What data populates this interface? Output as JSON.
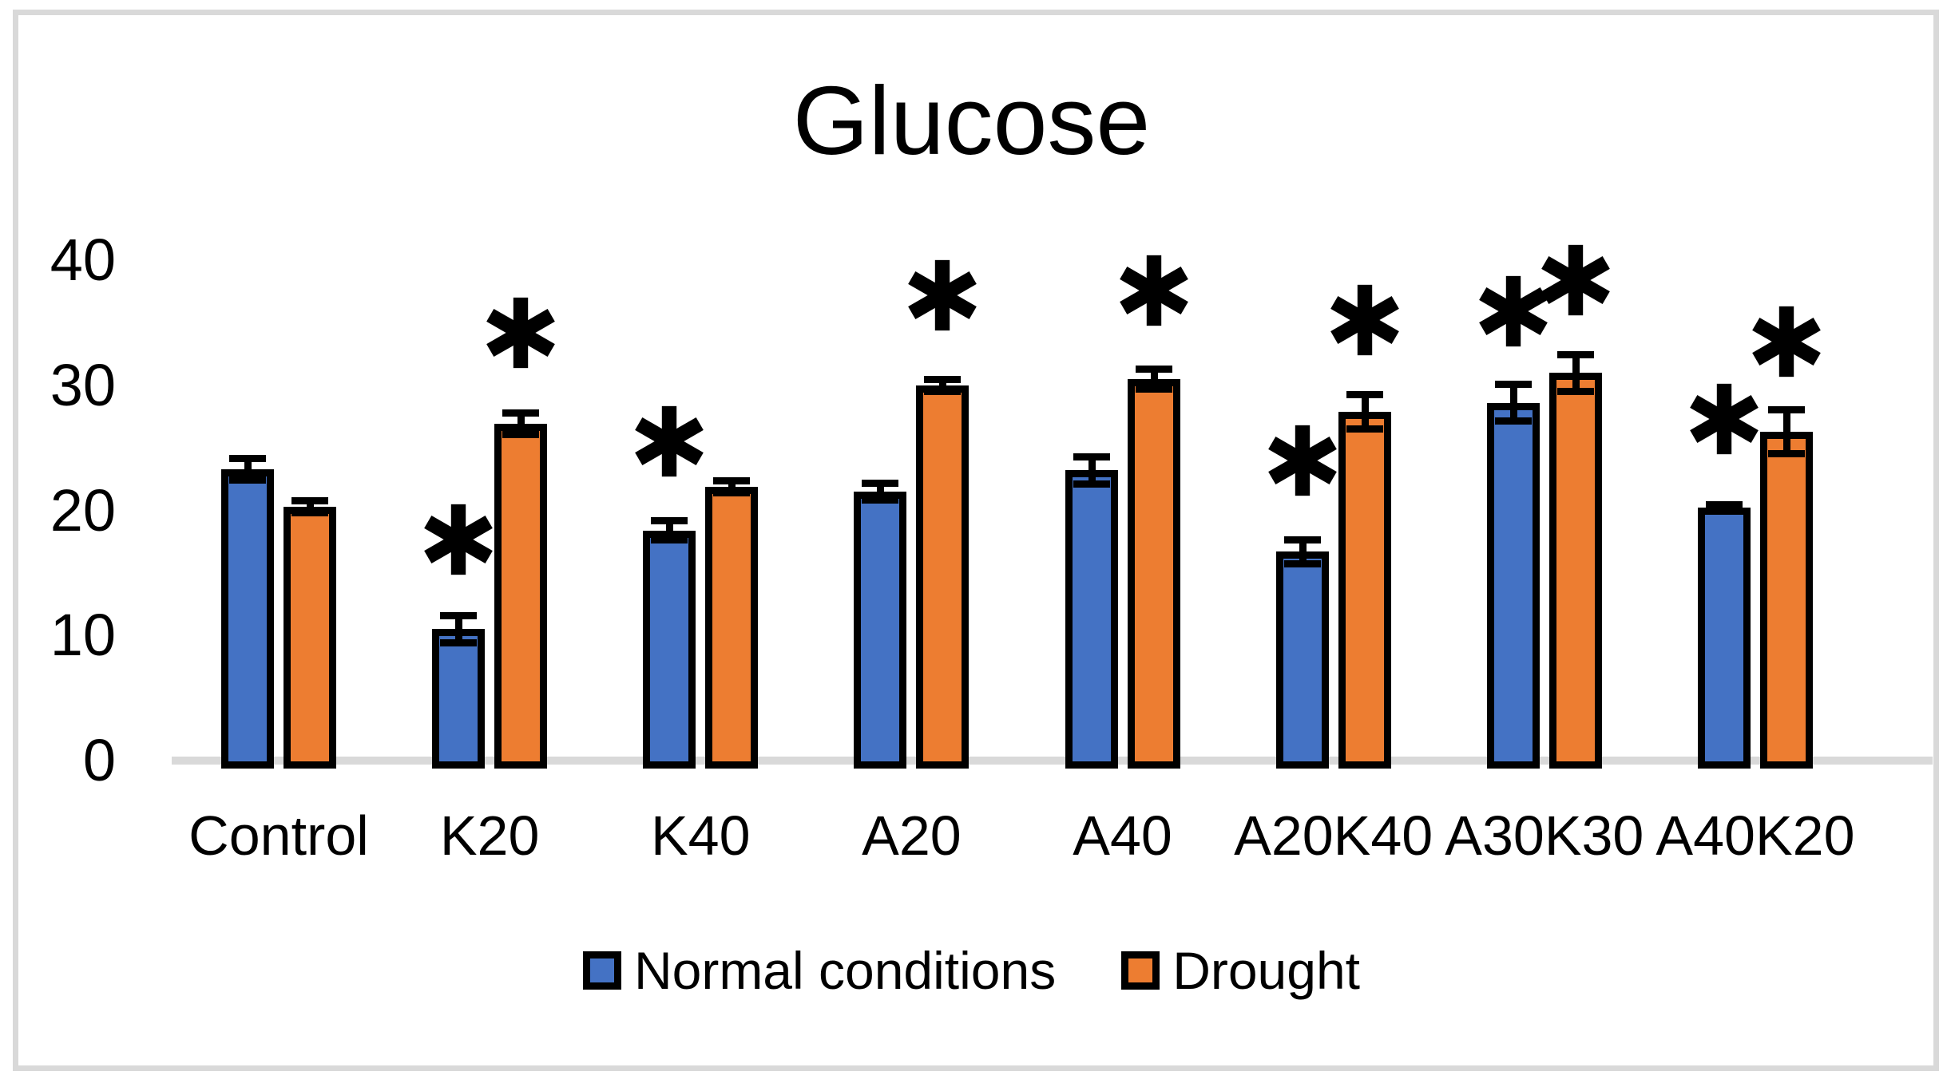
{
  "title": "Glucose",
  "colors": {
    "normal_series": "#4472c4",
    "drought_series": "#ed7d31",
    "bar_outline": "#000000",
    "axis_line": "#d9d9d9",
    "chart_border": "#d9d9d9",
    "text": "#000000"
  },
  "significance_marker": "*",
  "legend": {
    "items": [
      {
        "label": "Normal conditions",
        "color": "#4472c4"
      },
      {
        "label": "Drought",
        "color": "#ed7d31"
      }
    ]
  },
  "y_axis": {
    "tick_labels": [
      "0",
      "10",
      "20",
      "30",
      "40"
    ],
    "tick_values": [
      0,
      10,
      20,
      30,
      40
    ]
  },
  "chart_data": {
    "type": "bar",
    "title": "Glucose",
    "xlabel": "",
    "ylabel": "",
    "ylim": [
      0,
      40
    ],
    "grid": false,
    "legend_position": "bottom",
    "error_bars": true,
    "categories": [
      "Control",
      "K20",
      "K40",
      "A20",
      "A40",
      "A20K40",
      "A30K30",
      "A40K20"
    ],
    "series": [
      {
        "name": "Normal conditions",
        "color": "#4472c4",
        "values": [
          23.3,
          10.5,
          18.4,
          21.5,
          23.2,
          16.7,
          28.6,
          20.2
        ],
        "errors": [
          0.9,
          1.1,
          0.8,
          0.7,
          1.1,
          1.0,
          1.5,
          0.3
        ],
        "significant": [
          false,
          true,
          true,
          false,
          false,
          true,
          true,
          true
        ],
        "asterisk_value_y": [
          null,
          17.7,
          25.5,
          null,
          null,
          24.0,
          35.9,
          27.3
        ]
      },
      {
        "name": "Drought",
        "color": "#ed7d31",
        "values": [
          20.3,
          26.9,
          21.9,
          30.0,
          30.5,
          27.9,
          31.0,
          26.3
        ],
        "errors": [
          0.5,
          0.9,
          0.5,
          0.5,
          0.85,
          1.4,
          1.5,
          1.8
        ],
        "significant": [
          false,
          true,
          false,
          true,
          true,
          true,
          true,
          true
        ],
        "asterisk_value_y": [
          null,
          34.2,
          null,
          37.2,
          37.6,
          35.2,
          38.4,
          33.5
        ]
      }
    ]
  }
}
